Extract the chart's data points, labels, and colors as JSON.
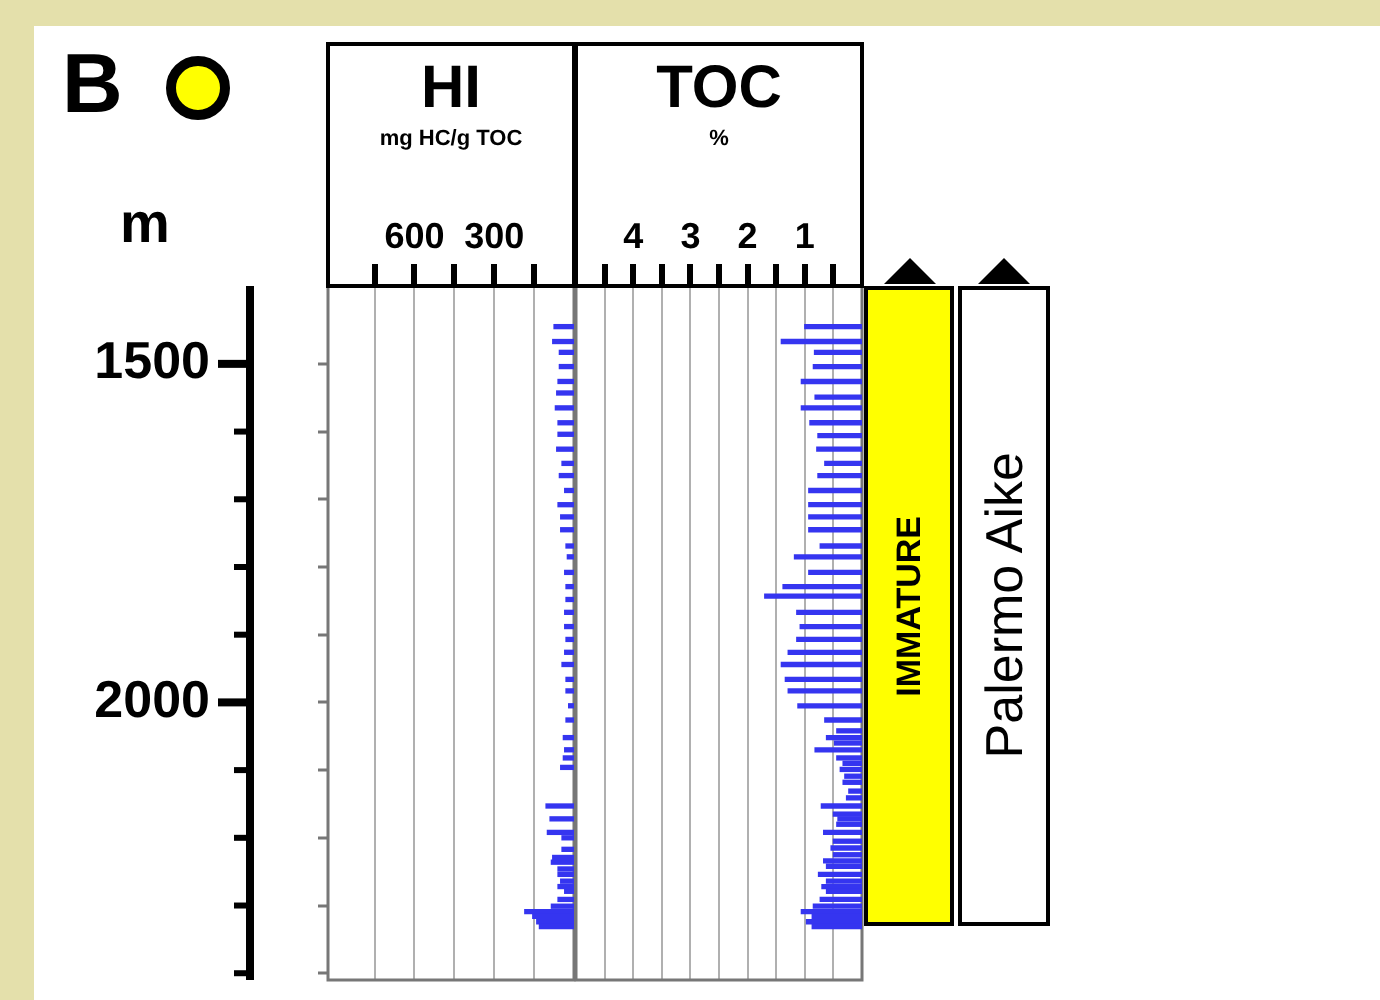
{
  "chart_data": [
    {
      "type": "bar",
      "orientation": "horizontal",
      "title": "HI",
      "xlabel": "mg HC/g TOC",
      "ylabel": "m",
      "annotations": [
        "B"
      ],
      "x": [
        1445,
        1467,
        1483,
        1504,
        1526,
        1543,
        1565,
        1587,
        1604,
        1626,
        1647,
        1665,
        1687,
        1708,
        1726,
        1745,
        1769,
        1785,
        1808,
        1829,
        1848,
        1867,
        1888,
        1907,
        1926,
        1944,
        1966,
        1983,
        2005,
        2026,
        2052,
        2070,
        2082,
        2096,
        2153,
        2172,
        2192,
        2200,
        2217,
        2229,
        2236,
        2246,
        2254,
        2264,
        2272,
        2279,
        2291,
        2301,
        2309,
        2316,
        2324,
        2331
      ],
      "values": [
        75,
        80,
        55,
        55,
        60,
        65,
        70,
        60,
        60,
        65,
        45,
        55,
        35,
        60,
        50,
        50,
        30,
        25,
        35,
        30,
        30,
        35,
        35,
        30,
        35,
        45,
        30,
        30,
        20,
        30,
        40,
        35,
        40,
        50,
        105,
        90,
        100,
        45,
        45,
        80,
        85,
        60,
        60,
        50,
        60,
        35,
        60,
        85,
        185,
        155,
        140,
        130
      ],
      "color": "#3535f0",
      "xlim": [
        925,
        0
      ],
      "xticks": [
        {
          "value": 750,
          "label": null
        },
        600,
        {
          "value": 450,
          "label": null
        },
        300,
        {
          "value": 150,
          "label": null
        }
      ],
      "ylim": [
        2410,
        1385
      ],
      "yticks": [
        1500,
        {
          "value": 1600,
          "label": null
        },
        {
          "value": 1700,
          "label": null
        },
        {
          "value": 1800,
          "label": null
        },
        {
          "value": 1900,
          "label": null
        },
        2000,
        {
          "value": 2100,
          "label": null
        },
        {
          "value": 2200,
          "label": null
        },
        {
          "value": 2300,
          "label": null
        },
        {
          "value": 2400,
          "label": null
        }
      ],
      "grid": "x"
    },
    {
      "type": "bar",
      "orientation": "horizontal",
      "title": "TOC",
      "xlabel": "%",
      "x": [
        1445,
        1467,
        1483,
        1504,
        1526,
        1549,
        1565,
        1587,
        1606,
        1626,
        1647,
        1665,
        1687,
        1708,
        1726,
        1745,
        1769,
        1785,
        1808,
        1829,
        1843,
        1867,
        1888,
        1907,
        1926,
        1944,
        1966,
        1983,
        2005,
        2026,
        2042,
        2052,
        2060,
        2070,
        2082,
        2090,
        2099,
        2109,
        2118,
        2131,
        2141,
        2153,
        2165,
        2172,
        2180,
        2192,
        2205,
        2215,
        2225,
        2234,
        2242,
        2254,
        2264,
        2272,
        2279,
        2291,
        2301,
        2309,
        2316,
        2324,
        2331
      ],
      "values": [
        1.0,
        1.41,
        0.83,
        0.85,
        1.06,
        0.82,
        1.06,
        0.91,
        0.77,
        0.79,
        0.65,
        0.77,
        0.93,
        0.93,
        0.93,
        0.93,
        0.73,
        1.18,
        0.93,
        1.38,
        1.7,
        1.14,
        1.08,
        1.14,
        1.29,
        1.41,
        1.34,
        1.29,
        1.12,
        0.65,
        0.44,
        0.62,
        0.48,
        0.82,
        0.44,
        0.33,
        0.38,
        0.3,
        0.33,
        0.23,
        0.27,
        0.71,
        0.5,
        0.42,
        0.44,
        0.67,
        0.5,
        0.54,
        0.5,
        0.67,
        0.62,
        0.76,
        0.62,
        0.7,
        0.62,
        0.73,
        0.85,
        1.06,
        0.87,
        0.97,
        0.87
      ],
      "color": "#3535f0",
      "xlim": [
        5,
        0
      ],
      "xticks": [
        {
          "value": 4.5,
          "label": null
        },
        4,
        {
          "value": 3.5,
          "label": null
        },
        3,
        {
          "value": 2.5,
          "label": null
        },
        2,
        {
          "value": 1.5,
          "label": null
        },
        1,
        {
          "value": 0.5,
          "label": null
        }
      ],
      "ylim": [
        2410,
        1385
      ],
      "tick_labels": "x",
      "grid": "x"
    },
    {
      "type": "other",
      "annotations": [
        "IMMATURE",
        "Palermo Aike"
      ]
    }
  ]
}
